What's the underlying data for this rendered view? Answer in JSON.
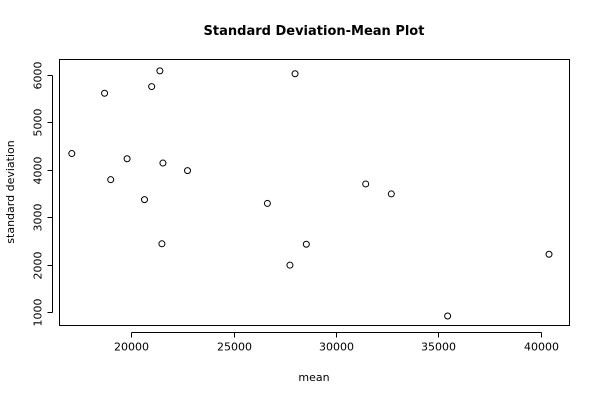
{
  "chart_data": {
    "type": "scatter",
    "title": "Standard Deviation-Mean Plot",
    "xlabel": "mean",
    "ylabel": "standard deviation",
    "xlim": [
      16500,
      41400
    ],
    "ylim": [
      720,
      6320
    ],
    "xticks": [
      20000,
      25000,
      30000,
      35000,
      40000
    ],
    "yticks": [
      1000,
      2000,
      3000,
      4000,
      5000,
      6000
    ],
    "grid": false,
    "legend": "none",
    "points": [
      {
        "x": 17100,
        "y": 4340
      },
      {
        "x": 18700,
        "y": 5610
      },
      {
        "x": 19000,
        "y": 3790
      },
      {
        "x": 19800,
        "y": 4230
      },
      {
        "x": 20650,
        "y": 3370
      },
      {
        "x": 21000,
        "y": 5750
      },
      {
        "x": 21400,
        "y": 6080
      },
      {
        "x": 21500,
        "y": 2440
      },
      {
        "x": 21550,
        "y": 4140
      },
      {
        "x": 22750,
        "y": 3980
      },
      {
        "x": 26650,
        "y": 3290
      },
      {
        "x": 27750,
        "y": 1990
      },
      {
        "x": 28000,
        "y": 6020
      },
      {
        "x": 28550,
        "y": 2430
      },
      {
        "x": 31450,
        "y": 3700
      },
      {
        "x": 32700,
        "y": 3490
      },
      {
        "x": 35450,
        "y": 920
      },
      {
        "x": 40400,
        "y": 2220
      }
    ]
  }
}
